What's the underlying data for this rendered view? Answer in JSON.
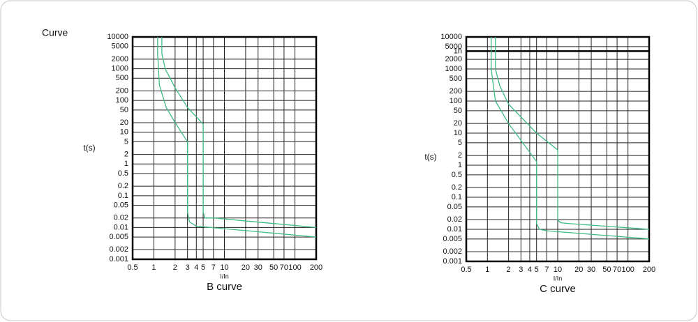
{
  "chart_data": [
    {
      "type": "line",
      "title": "B curve",
      "corner_label": "Curve",
      "xlabel": "I/In",
      "ylabel": "t(s)",
      "xscale": "log",
      "yscale": "log",
      "grid": true,
      "xlim": [
        0.5,
        200
      ],
      "xticks": [
        0.5,
        1,
        2,
        3,
        4,
        5,
        7,
        10,
        20,
        30,
        50,
        70,
        100,
        200
      ],
      "ylim": [
        0.001,
        10000
      ],
      "yticks": [
        10000,
        5000,
        2000,
        1000,
        500,
        200,
        100,
        50,
        20,
        10,
        5,
        2,
        1,
        0.5,
        0.2,
        0.1,
        0.05,
        0.02,
        0.01,
        0.005,
        0.002,
        0.001
      ],
      "series": [
        {
          "color": "#3dbb84",
          "x": [
            1.13,
            1.13,
            1.2,
            1.5,
            2,
            3,
            3,
            3.2,
            4,
            200
          ],
          "values": [
            10000,
            3000,
            300,
            60,
            20,
            5,
            0.03,
            0.015,
            0.011,
            0.005
          ]
        },
        {
          "color": "#3dbb84",
          "x": [
            1.3,
            1.3,
            1.45,
            2,
            3,
            5,
            5,
            5.3,
            7,
            200
          ],
          "values": [
            10000,
            3000,
            1000,
            250,
            60,
            18,
            0.03,
            0.02,
            0.02,
            0.01
          ]
        }
      ]
    },
    {
      "type": "line",
      "title": "C curve",
      "xlabel": "I/In",
      "ylabel": "t(s)",
      "xscale": "log",
      "yscale": "log",
      "grid": true,
      "xlim": [
        0.5,
        200
      ],
      "xticks": [
        0.5,
        1,
        2,
        3,
        4,
        5,
        7,
        10,
        20,
        30,
        50,
        70,
        100,
        200
      ],
      "ylim": [
        0.001,
        10000
      ],
      "yticks": [
        10000,
        5000,
        {
          "value": 3600,
          "label": "1h"
        },
        2000,
        1000,
        500,
        200,
        100,
        50,
        20,
        10,
        5,
        2,
        1,
        0.5,
        0.2,
        0.1,
        0.05,
        0.02,
        0.01,
        0.005,
        0.002,
        0.001
      ],
      "hline": 3600,
      "series": [
        {
          "color": "#3dbb84",
          "x": [
            1.13,
            1.13,
            1.3,
            2,
            5,
            5,
            5.5,
            7,
            200
          ],
          "values": [
            10000,
            1000,
            100,
            20,
            1.3,
            0.015,
            0.01,
            0.009,
            0.005
          ]
        },
        {
          "color": "#3dbb84",
          "x": [
            1.3,
            1.3,
            1.5,
            2,
            5,
            10,
            10,
            11,
            15,
            200
          ],
          "values": [
            10000,
            1000,
            300,
            80,
            10,
            3,
            0.02,
            0.016,
            0.015,
            0.01
          ]
        }
      ]
    }
  ]
}
